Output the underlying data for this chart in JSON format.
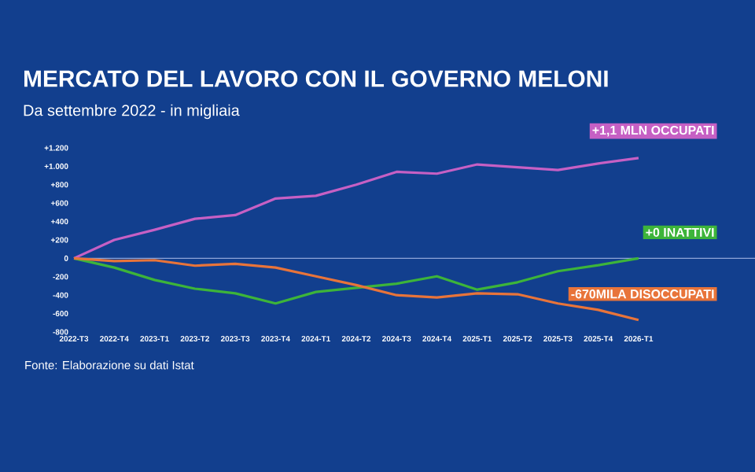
{
  "chart_data": {
    "type": "line",
    "title": "MERCATO DEL LAVORO CON IL GOVERNO MELONI",
    "subtitle": "Da settembre 2022 - in migliaia",
    "categories": [
      "2022-T3",
      "2022-T4",
      "2023-T1",
      "2023-T2",
      "2023-T3",
      "2023-T4",
      "2024-T1",
      "2024-T2",
      "2024-T3",
      "2024-T4",
      "2025-T1",
      "2025-T2",
      "2025-T3",
      "2025-T4",
      "2026-T1"
    ],
    "series": [
      {
        "name": "+1,1 MLN OCCUPATI",
        "color": "#c660c4",
        "values": [
          0,
          200,
          310,
          430,
          470,
          650,
          680,
          800,
          940,
          920,
          1020,
          990,
          960,
          1030,
          1090
        ]
      },
      {
        "name": "+0 INATTIVI",
        "color": "#3db43a",
        "values": [
          0,
          -100,
          -235,
          -330,
          -380,
          -490,
          -365,
          -320,
          -275,
          -195,
          -340,
          -260,
          -140,
          -75,
          0
        ]
      },
      {
        "name": "-670MILA DISOCCUPATI",
        "color": "#e8743a",
        "values": [
          0,
          -30,
          -20,
          -80,
          -60,
          -100,
          -195,
          -290,
          -400,
          -425,
          -380,
          -390,
          -490,
          -560,
          -670
        ]
      }
    ],
    "ylim": [
      -800,
      1200
    ],
    "yticks": [
      {
        "value": 1200,
        "label": "+1.200"
      },
      {
        "value": 1000,
        "label": "+1.000"
      },
      {
        "value": 800,
        "label": "+800"
      },
      {
        "value": 600,
        "label": "+600"
      },
      {
        "value": 400,
        "label": "+400"
      },
      {
        "value": 200,
        "label": "+200"
      },
      0,
      -200,
      -400,
      -600,
      -800
    ],
    "ref_lines": [
      {
        "axis": "y",
        "value": 0,
        "color": "#8ea4d8"
      }
    ],
    "legend": false,
    "marker": "none",
    "line_style": "solid",
    "annotations": [
      "Fonte: Elaborazione su dati Istat"
    ]
  }
}
